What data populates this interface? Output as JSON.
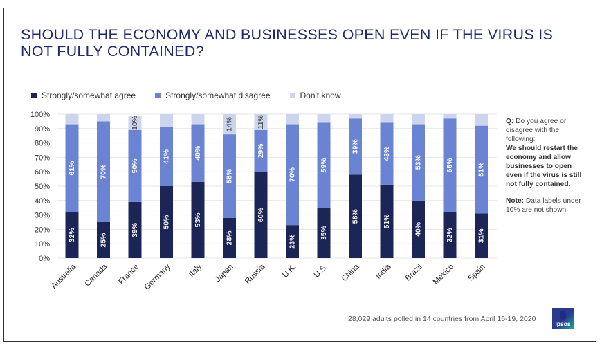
{
  "title": "SHOULD THE ECONOMY AND BUSINESSES OPEN EVEN IF THE VIRUS IS NOT FULLY CONTAINED?",
  "legend": [
    {
      "label": "Strongly/somewhat agree",
      "color": "#1b2656"
    },
    {
      "label": "Strongly/somewhat disagree",
      "color": "#6b83d3"
    },
    {
      "label": "Don't know",
      "color": "#ccd4ee"
    }
  ],
  "side_note": {
    "q_label": "Q:",
    "q_text": "Do you agree or disagree with the following:",
    "statement": "We should restart the economy and allow businesses to open even if the virus is still not fully contained.",
    "note_label": "Note:",
    "note_text": "Data labels under 10% are not shown"
  },
  "footer": "28,029 adults polled in 14 countries from April 16-19, 2020",
  "logo": "Ipsos",
  "chart_data": {
    "type": "bar",
    "stacked": true,
    "title": "SHOULD THE ECONOMY AND BUSINESSES OPEN EVEN IF THE VIRUS IS NOT FULLY CONTAINED?",
    "xlabel": "",
    "ylabel": "",
    "ylim": [
      0,
      100
    ],
    "y_ticks": [
      "0%",
      "10%",
      "20%",
      "30%",
      "40%",
      "50%",
      "60%",
      "70%",
      "80%",
      "90%",
      "100%"
    ],
    "grid": true,
    "legend_position": "top-left",
    "label_threshold": 10,
    "categories": [
      "Australia",
      "Canada",
      "France",
      "Germany",
      "Italy",
      "Japan",
      "Russia",
      "U.K.",
      "U.S.",
      "China",
      "India",
      "Brazil",
      "Mexico",
      "Spain"
    ],
    "series": [
      {
        "name": "Strongly/somewhat agree",
        "color": "#1b2656",
        "label_color": "#ffffff",
        "values": [
          32,
          25,
          39,
          50,
          53,
          28,
          60,
          23,
          35,
          58,
          51,
          40,
          32,
          31
        ]
      },
      {
        "name": "Strongly/somewhat disagree",
        "color": "#6b83d3",
        "label_color": "#ffffff",
        "values": [
          61,
          70,
          50,
          41,
          40,
          58,
          29,
          70,
          59,
          39,
          43,
          53,
          65,
          61
        ]
      },
      {
        "name": "Don't know",
        "color": "#ccd4ee",
        "label_color": "#555555",
        "values": [
          7,
          5,
          10,
          9,
          7,
          14,
          11,
          7,
          6,
          3,
          6,
          7,
          3,
          8
        ]
      }
    ]
  }
}
